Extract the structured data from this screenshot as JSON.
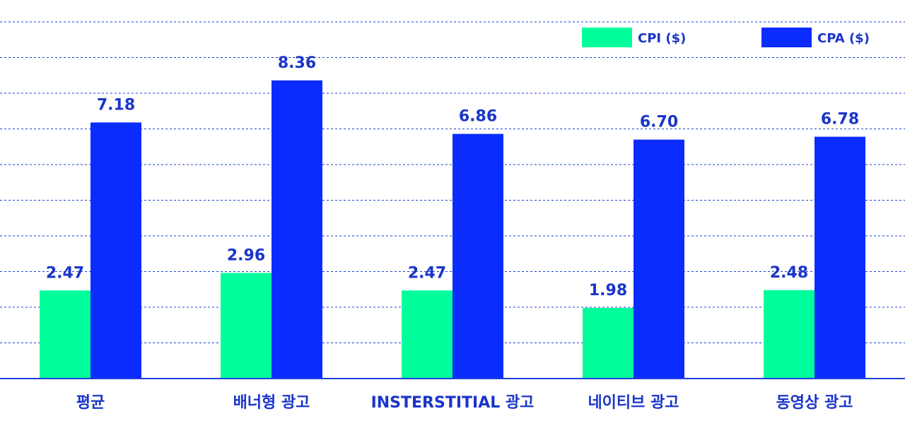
{
  "chart_data": {
    "type": "bar",
    "categories": [
      "평균",
      "배너형 광고",
      "INSTERSTITIAL 광고",
      "네이티브 광고",
      "동영상 광고"
    ],
    "series": [
      {
        "name": "CPI ($)",
        "values": [
          2.47,
          2.96,
          2.47,
          1.98,
          2.48
        ],
        "labels": [
          "2.47",
          "2.96",
          "2.47",
          "1.98",
          "2.48"
        ],
        "color": "#00ff9c"
      },
      {
        "name": "CPA ($)",
        "values": [
          7.18,
          8.36,
          6.86,
          6.7,
          6.78
        ],
        "labels": [
          "7.18",
          "8.36",
          "6.86",
          "6.70",
          "6.78"
        ],
        "color": "#0a2cff"
      }
    ],
    "ylim": [
      0,
      10
    ],
    "grid": true,
    "legend": "top-right",
    "title": "",
    "xlabel": "",
    "ylabel": ""
  }
}
